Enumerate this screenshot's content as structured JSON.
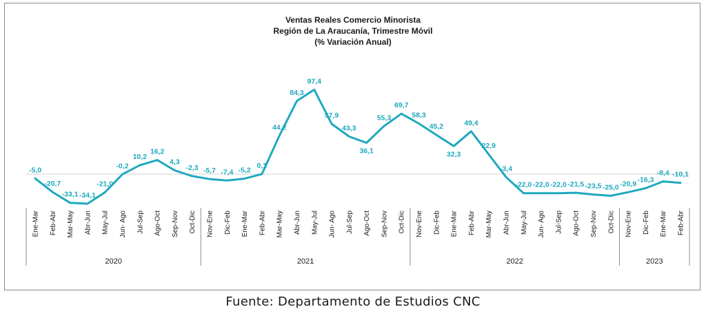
{
  "chart_data": {
    "type": "line",
    "title": [
      "Ventas Reales Comercio Minorista",
      "Región de La Araucanía, Trimestre Móvil",
      "(% Variación Anual)"
    ],
    "categories": [
      "Ene-Mar",
      "Feb-Abr",
      "Mar-May",
      "Abr-Jun",
      "May-Jul",
      "Jun- Ago",
      "Jul-Sep",
      "Ago-Oct",
      "Sep-Nov",
      "Oct-Dic",
      "Nov-Ene",
      "Dic-Feb",
      "Ene-Mar",
      "Feb-Abr",
      "Mar-May",
      "Abr-Jun",
      "May-Jul",
      "Jun- Ago",
      "Jul-Sep",
      "Ago-Oct",
      "Sep-Nov",
      "Oct-Dic",
      "Nov-Ene",
      "Dic-Feb",
      "Ene-Mar",
      "Feb-Abr",
      "Mar-May",
      "Abr-Jun",
      "May-Jul",
      "Jun- Ago",
      "Jul-Sep",
      "Ago-Oct",
      "Sep-Nov",
      "Oct-Dic",
      "Nov-Ene",
      "Dic-Feb",
      "Ene-Mar",
      "Feb-Abr"
    ],
    "values": [
      -5.0,
      -20.7,
      -33.1,
      -34.1,
      -21.0,
      -0.2,
      10.2,
      16.2,
      4.3,
      -2.3,
      -5.7,
      -7.4,
      -5.2,
      0.1,
      44.2,
      84.3,
      97.4,
      57.9,
      43.3,
      36.1,
      55.3,
      69.7,
      58.3,
      45.2,
      32.3,
      49.4,
      22.9,
      -3.4,
      -22.0,
      -22.0,
      -22.0,
      -21.5,
      -23.5,
      -25.0,
      -20.9,
      -16.3,
      -8.4,
      -10.1
    ],
    "labels": [
      "-5,0",
      "-20,7",
      "-33,1",
      "-34,1",
      "-21,0",
      "-0,2",
      "10,2",
      "16,2",
      "4,3",
      "-2,3",
      "-5,7",
      "-7,4",
      "-5,2",
      "0,1",
      "44,2",
      "84,3",
      "97,4",
      "57,9",
      "43,3",
      "36,1",
      "55,3",
      "69,7",
      "58,3",
      "45,2",
      "32,3",
      "49,4",
      "22,9",
      "-3,4",
      "-22,0",
      "-22,0",
      "-22,0",
      "-21,5",
      "-23,5",
      "-25,0",
      "-20,9",
      "-16,3",
      "-8,4",
      "-10,1"
    ],
    "groups": [
      {
        "label": "2020",
        "start": 0,
        "end": 9
      },
      {
        "label": "2021",
        "start": 10,
        "end": 21
      },
      {
        "label": "2022",
        "start": 22,
        "end": 33
      },
      {
        "label": "2023",
        "start": 34,
        "end": 37
      }
    ],
    "ylim": [
      -45,
      115
    ],
    "grid": false,
    "line_color": "#1fa8bf"
  },
  "source": "Fuente: Departamento  de Estudios CNC"
}
